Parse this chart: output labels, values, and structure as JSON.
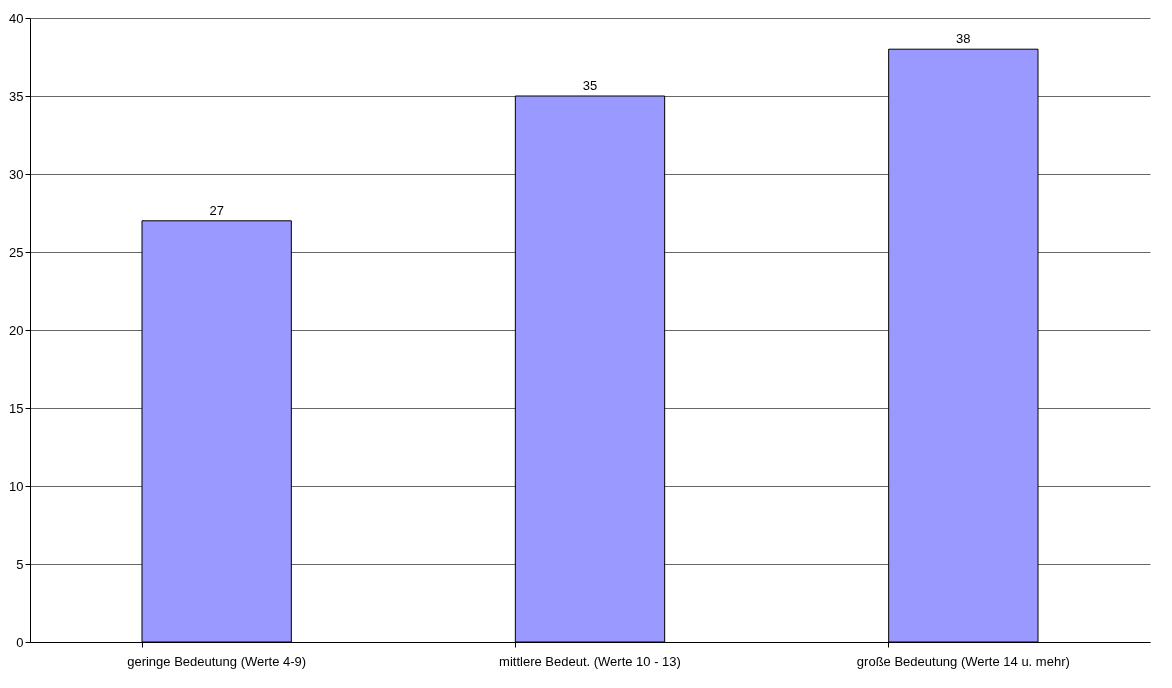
{
  "chart_data": {
    "type": "bar",
    "categories": [
      "geringe Bedeutung (Werte 4-9)",
      "mittlere Bedeut. (Werte 10 - 13)",
      "große Bedeutung (Werte 14 u. mehr)"
    ],
    "values": [
      27,
      35,
      38
    ],
    "color": "#9999ff",
    "ylim": [
      0,
      40
    ],
    "yticks": [
      0,
      5,
      10,
      15,
      20,
      25,
      30,
      35,
      40
    ],
    "grid": "y",
    "data_labels": true
  }
}
